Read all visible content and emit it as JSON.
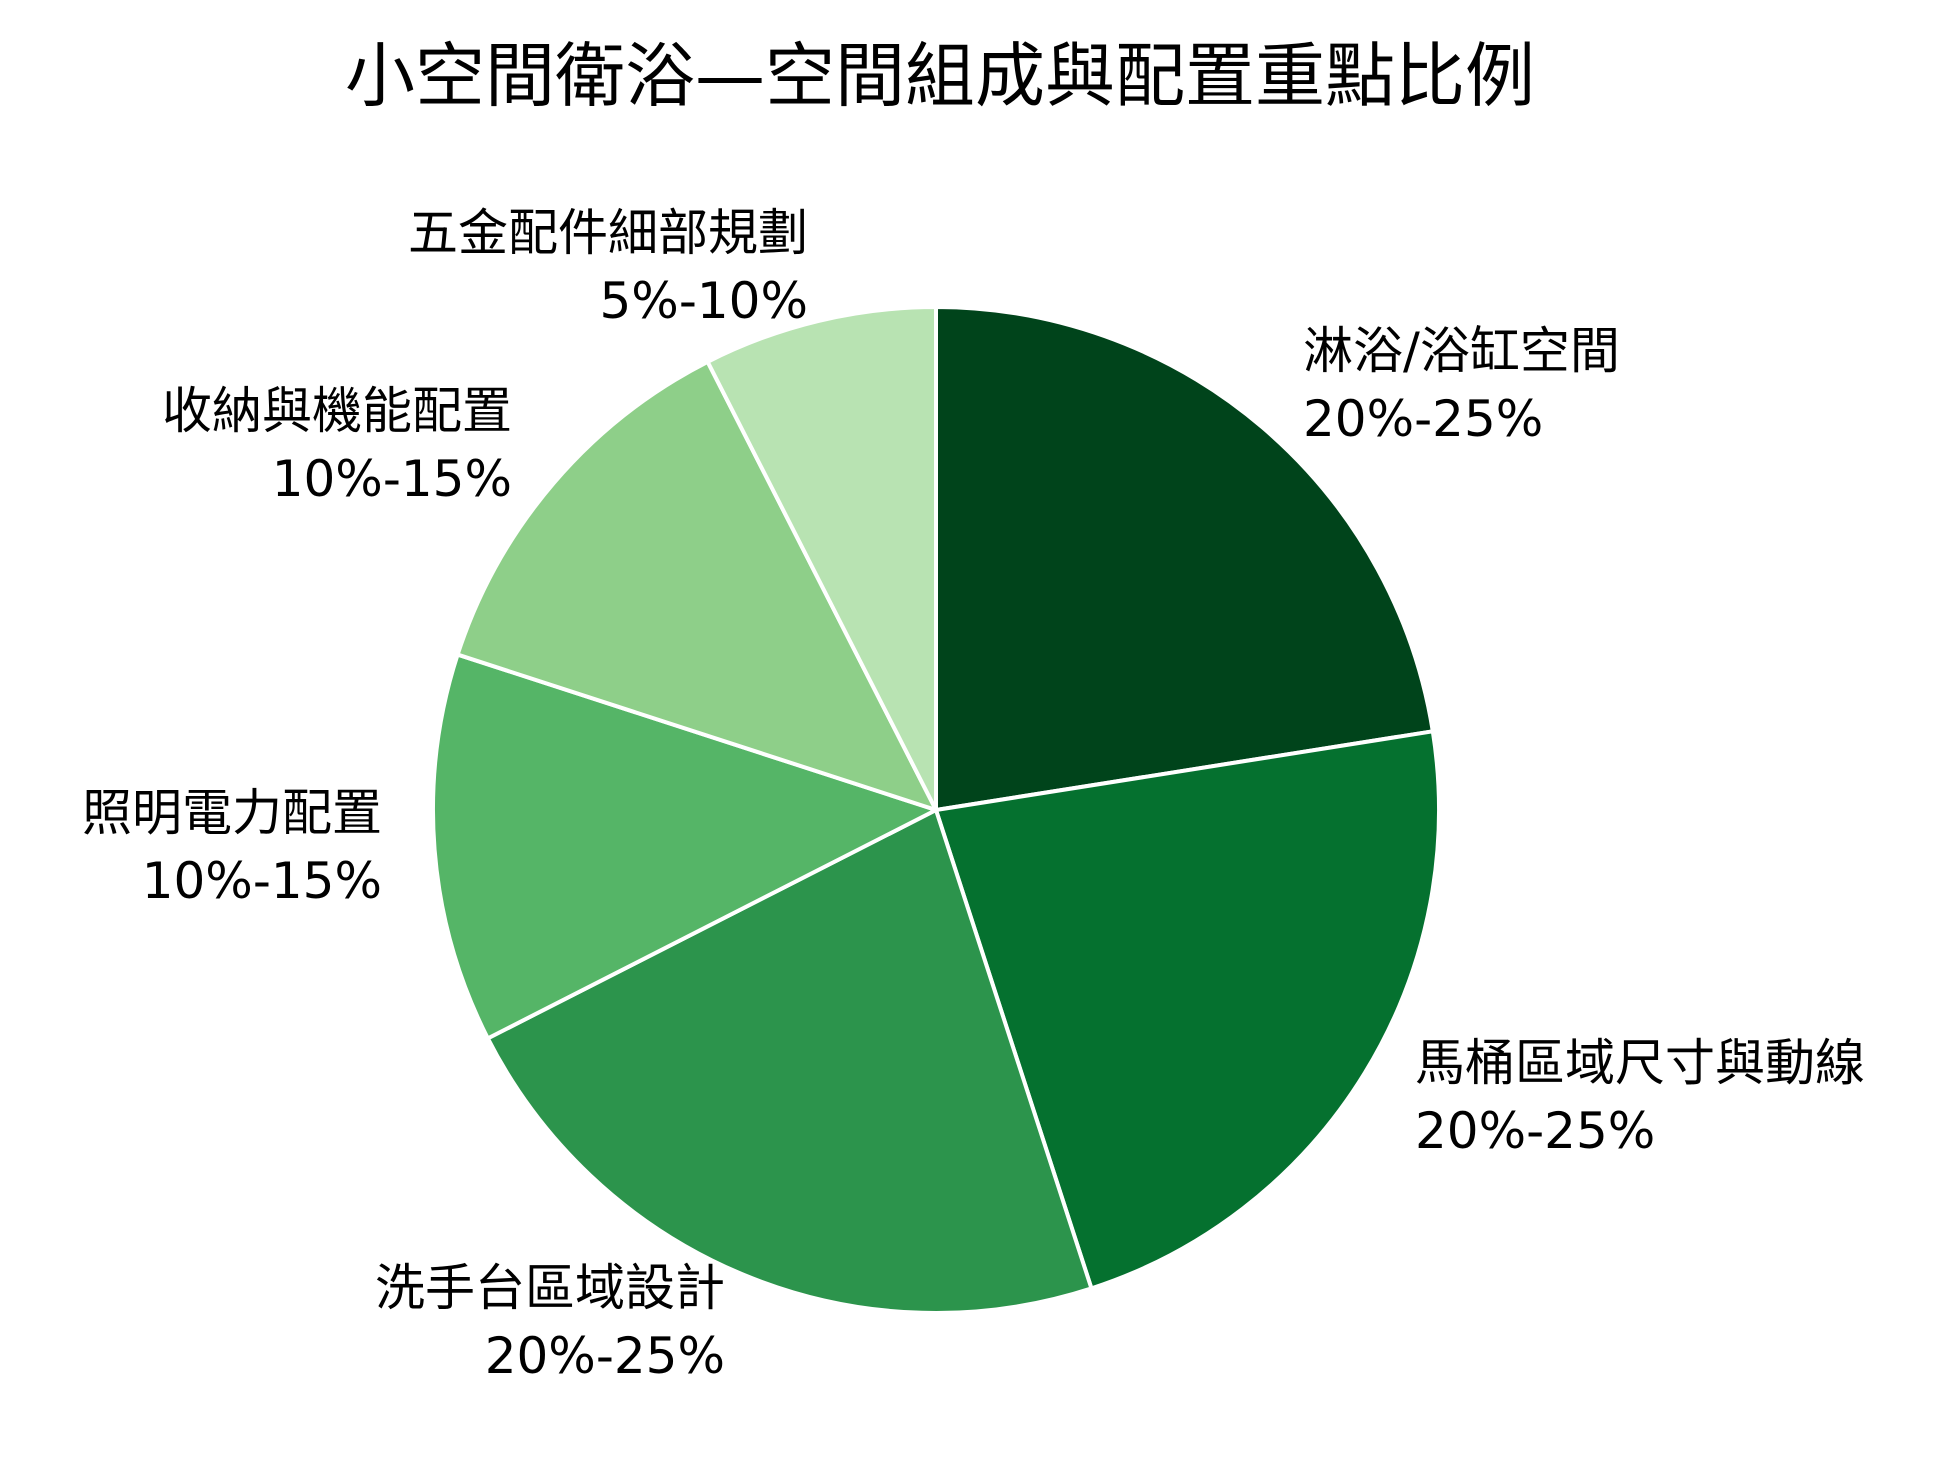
{
  "chart_data": {
    "type": "pie",
    "title": "小空間衛浴—空間組成與配置重點比例",
    "start": "12 o'clock",
    "direction": "clockwise",
    "slices": [
      {
        "name": "淋浴/浴缸空間",
        "range_label": "20%-25%",
        "value": 22.5,
        "color": "#00441b"
      },
      {
        "name": "馬桶區域尺寸與動線",
        "range_label": "20%-25%",
        "value": 22.5,
        "color": "#05712f"
      },
      {
        "name": "洗手台區域設計",
        "range_label": "20%-25%",
        "value": 22.5,
        "color": "#2c944c"
      },
      {
        "name": "照明電力配置",
        "range_label": "10%-15%",
        "value": 12.5,
        "color": "#55b567"
      },
      {
        "name": "收納與機能配置",
        "range_label": "10%-15%",
        "value": 12.5,
        "color": "#8ecf89"
      },
      {
        "name": "五金配件細部規劃",
        "range_label": "5%-10%",
        "value": 7.5,
        "color": "#b8e3b2"
      }
    ]
  }
}
